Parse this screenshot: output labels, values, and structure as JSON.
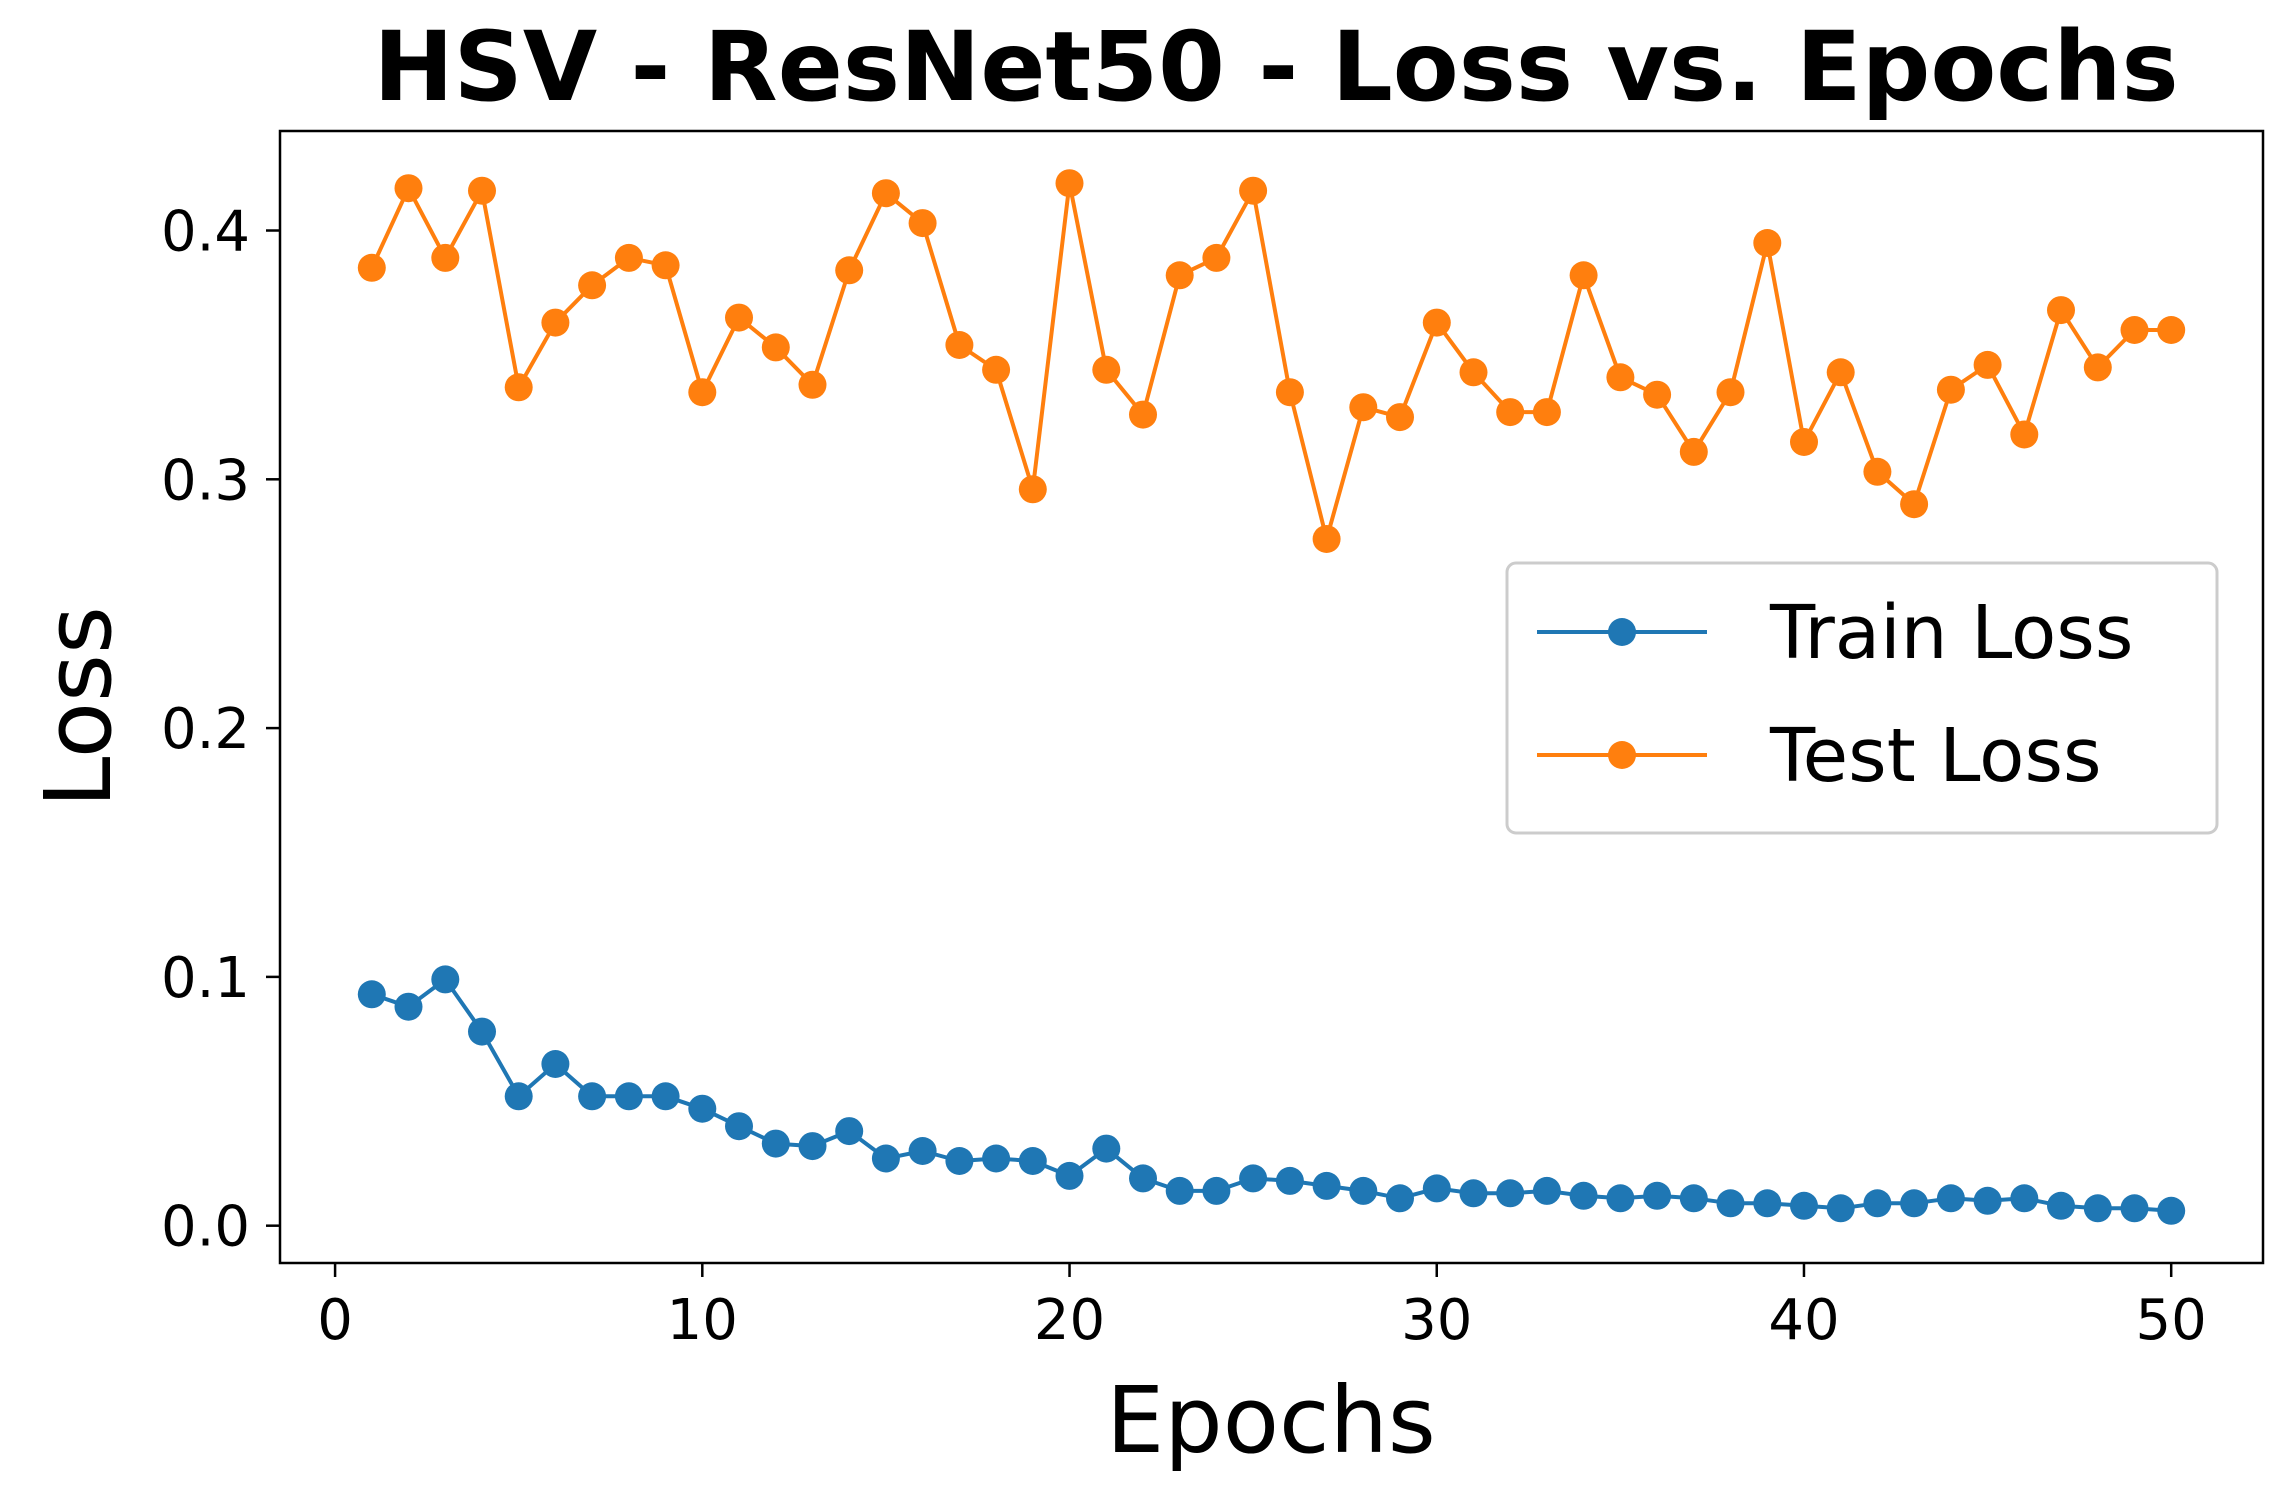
{
  "chart_data": {
    "type": "line",
    "title": "HSV - ResNet50 - Loss vs. Epochs",
    "xlabel": "Epochs",
    "ylabel": "Loss",
    "xlim": [
      -1.5,
      52.5
    ],
    "ylim": [
      -0.015,
      0.44
    ],
    "xticks": [
      0,
      10,
      20,
      30,
      40,
      50
    ],
    "xtick_labels": [
      "0",
      "10",
      "20",
      "30",
      "40",
      "50"
    ],
    "yticks": [
      0.0,
      0.1,
      0.2,
      0.3,
      0.4
    ],
    "ytick_labels": [
      "0.0",
      "0.1",
      "0.2",
      "0.3",
      "0.4"
    ],
    "grid": false,
    "legend_position": "center-right",
    "x": [
      1,
      2,
      3,
      4,
      5,
      6,
      7,
      8,
      9,
      10,
      11,
      12,
      13,
      14,
      15,
      16,
      17,
      18,
      19,
      20,
      21,
      22,
      23,
      24,
      25,
      26,
      27,
      28,
      29,
      30,
      31,
      32,
      33,
      34,
      35,
      36,
      37,
      38,
      39,
      40,
      41,
      42,
      43,
      44,
      45,
      46,
      47,
      48,
      49,
      50
    ],
    "series": [
      {
        "name": "Train Loss",
        "color": "#1f77b4",
        "marker": "circle",
        "values": [
          0.093,
          0.088,
          0.099,
          0.078,
          0.052,
          0.065,
          0.052,
          0.052,
          0.052,
          0.047,
          0.04,
          0.033,
          0.032,
          0.038,
          0.027,
          0.03,
          0.026,
          0.027,
          0.026,
          0.02,
          0.031,
          0.019,
          0.014,
          0.014,
          0.019,
          0.018,
          0.016,
          0.014,
          0.011,
          0.015,
          0.013,
          0.013,
          0.014,
          0.012,
          0.011,
          0.012,
          0.011,
          0.009,
          0.009,
          0.008,
          0.007,
          0.009,
          0.009,
          0.011,
          0.01,
          0.011,
          0.008,
          0.007,
          0.007,
          0.006
        ]
      },
      {
        "name": "Test Loss",
        "color": "#ff7f0e",
        "marker": "circle",
        "values": [
          0.385,
          0.417,
          0.389,
          0.416,
          0.337,
          0.363,
          0.378,
          0.389,
          0.386,
          0.335,
          0.365,
          0.353,
          0.338,
          0.384,
          0.415,
          0.403,
          0.354,
          0.344,
          0.296,
          0.419,
          0.344,
          0.326,
          0.382,
          0.389,
          0.416,
          0.335,
          0.276,
          0.329,
          0.325,
          0.363,
          0.343,
          0.327,
          0.327,
          0.382,
          0.341,
          0.334,
          0.311,
          0.335,
          0.395,
          0.315,
          0.343,
          0.303,
          0.29,
          0.336,
          0.346,
          0.318,
          0.368,
          0.345,
          0.36,
          0.36
        ]
      }
    ]
  }
}
